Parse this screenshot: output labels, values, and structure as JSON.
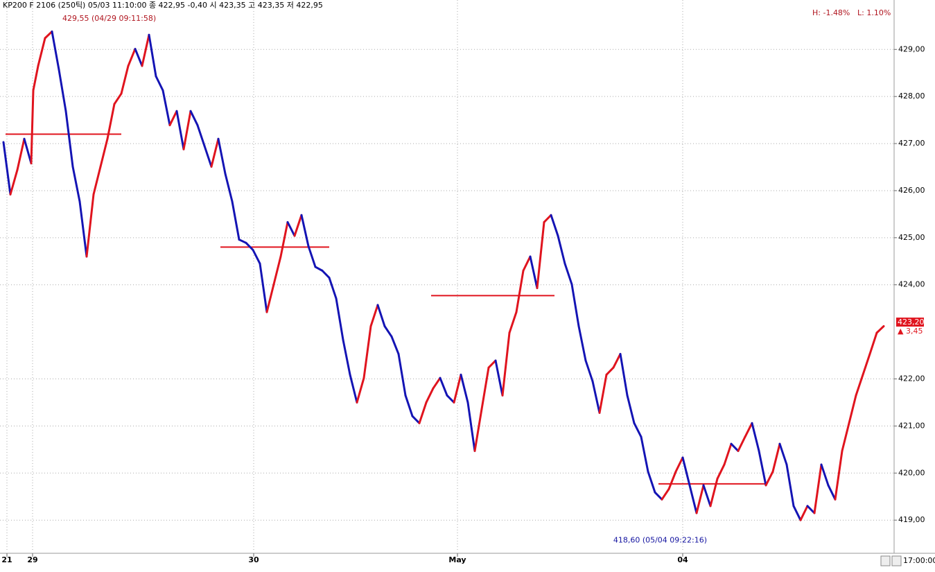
{
  "chart_data": {
    "type": "tick-line",
    "header": "KP200 F 2106 (250틱) 05/03 11:10:00   종 422,95 -0,40   시 423,35 고 423,35 저 422,95",
    "range_high": "H: -1.48%",
    "range_low": "L: 1.10%",
    "time_label": "17:00:00",
    "up_color": "#e0141e",
    "down_color": "#1414b4",
    "level_color": "#e0141e",
    "grid": true,
    "xlim": [
      0,
      1290
    ],
    "ylim": [
      418.34,
      430.05
    ],
    "xticks": [
      {
        "value": 10,
        "label": "21"
      },
      {
        "value": 47,
        "label": "29"
      },
      {
        "value": 366,
        "label": "30"
      },
      {
        "value": 660,
        "label": "May"
      },
      {
        "value": 985,
        "label": "04"
      }
    ],
    "yticks": [
      {
        "value": 419,
        "label": "419,00"
      },
      {
        "value": 420,
        "label": "420,00"
      },
      {
        "value": 421,
        "label": "421,00"
      },
      {
        "value": 422,
        "label": "422,00"
      },
      {
        "value": 424,
        "label": "424,00"
      },
      {
        "value": 425,
        "label": "425,00"
      },
      {
        "value": 426,
        "label": "426,00"
      },
      {
        "value": 427,
        "label": "427,00"
      },
      {
        "value": 428,
        "label": "428,00"
      },
      {
        "value": 429,
        "label": "429,00"
      }
    ],
    "x": [
      5,
      15,
      25,
      35,
      45,
      48,
      55,
      65,
      75,
      85,
      95,
      105,
      115,
      125,
      135,
      145,
      155,
      165,
      175,
      185,
      195,
      205,
      215,
      225,
      235,
      245,
      255,
      265,
      275,
      285,
      295,
      305,
      315,
      325,
      335,
      345,
      355,
      365,
      375,
      385,
      395,
      405,
      415,
      425,
      435,
      445,
      455,
      465,
      475,
      485,
      495,
      505,
      515,
      525,
      535,
      545,
      555,
      565,
      575,
      585,
      595,
      605,
      615,
      625,
      635,
      645,
      655,
      665,
      675,
      685,
      695,
      705,
      715,
      725,
      735,
      745,
      755,
      765,
      775,
      785,
      795,
      805,
      815,
      825,
      835,
      845,
      855,
      865,
      875,
      885,
      895,
      905,
      915,
      925,
      935,
      945,
      955,
      965,
      975,
      985,
      995,
      1005,
      1015,
      1025,
      1035,
      1045,
      1055,
      1065,
      1075,
      1085,
      1095,
      1105,
      1115,
      1125,
      1135,
      1145,
      1155,
      1165,
      1175,
      1185,
      1195,
      1205,
      1215,
      1225,
      1235,
      1245,
      1255,
      1265,
      1275
    ],
    "values": [
      427.03,
      425.92,
      426.44,
      427.1,
      426.58,
      428.13,
      428.65,
      429.24,
      429.38,
      428.57,
      427.69,
      426.51,
      425.77,
      424.6,
      425.92,
      426.51,
      427.1,
      427.84,
      428.06,
      428.65,
      429.01,
      428.65,
      429.31,
      428.43,
      428.13,
      427.39,
      427.69,
      426.88,
      427.69,
      427.39,
      426.95,
      426.51,
      427.1,
      426.36,
      425.77,
      424.96,
      424.89,
      424.74,
      424.45,
      423.42,
      424.01,
      424.6,
      425.33,
      425.04,
      425.48,
      424.82,
      424.38,
      424.3,
      424.15,
      423.71,
      422.83,
      422.09,
      421.5,
      422.02,
      423.12,
      423.57,
      423.12,
      422.9,
      422.53,
      421.65,
      421.21,
      421.06,
      421.5,
      421.8,
      422.02,
      421.65,
      421.5,
      422.09,
      421.5,
      420.47,
      421.36,
      422.24,
      422.39,
      421.65,
      422.98,
      423.42,
      424.3,
      424.6,
      423.93,
      425.33,
      425.48,
      425.04,
      424.45,
      424.01,
      423.12,
      422.39,
      421.95,
      421.28,
      422.09,
      422.24,
      422.53,
      421.65,
      421.06,
      420.77,
      420.03,
      419.59,
      419.44,
      419.66,
      420.03,
      420.33,
      419.74,
      419.15,
      419.74,
      419.3,
      419.88,
      420.18,
      420.62,
      420.47,
      420.77,
      421.06,
      420.47,
      419.74,
      420.03,
      420.62,
      420.18,
      419.3,
      419.0,
      419.3,
      419.15,
      420.18,
      419.74,
      419.44,
      420.47,
      421.06,
      421.65,
      422.09,
      422.53,
      422.98,
      423.12
    ],
    "levels": [
      {
        "x0": 8,
        "x1": 175,
        "value": 427.2
      },
      {
        "x0": 318,
        "x1": 475,
        "value": 424.8
      },
      {
        "x0": 622,
        "x1": 800,
        "value": 423.77
      },
      {
        "x0": 950,
        "x1": 1105,
        "value": 419.77
      }
    ],
    "annotations": [
      {
        "text": "429,55 (04/29 09:11:58)",
        "x": 75,
        "y": 429.55
      },
      {
        "text": "418,60 (05/04 09:22:16)",
        "x": 1025,
        "y": 418.6
      }
    ],
    "last_price": {
      "value": 423.2,
      "label": "423,20"
    },
    "change_label": "▲ 3,45"
  }
}
